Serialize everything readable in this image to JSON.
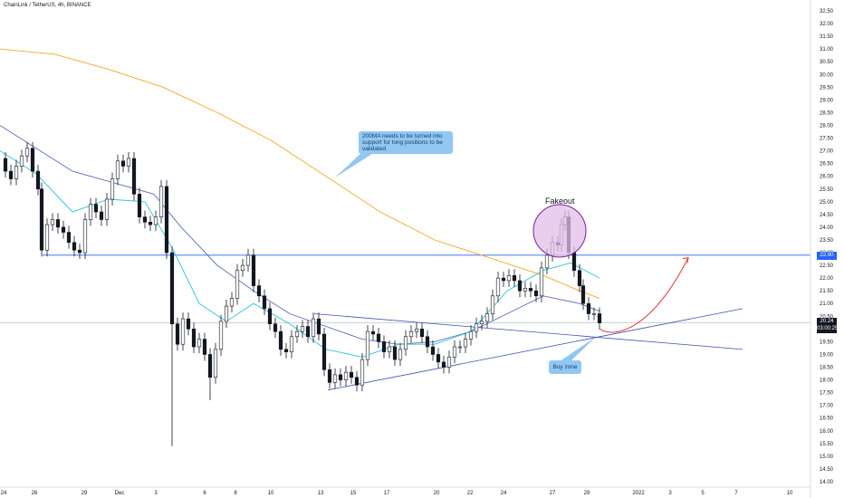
{
  "header": {
    "symbol_line": "ChainLink / TetherUS, 4h, BINANCE"
  },
  "annotations": {
    "callout_text": "200MA needs to be turned into support for long positions to be validated",
    "fakeout_label": "Fakeout",
    "buy_zone_label": "Buy zone"
  },
  "price_tags": {
    "level": "22.90",
    "last": "20.24",
    "countdown": "03:00:25"
  },
  "colors": {
    "candle": "#131722",
    "resistance_line": "#2962ff",
    "ma200": "#f5a623",
    "ma_fast": "#26c6da",
    "ma_mid": "#5c6bc0",
    "projection": "#e53935",
    "circle_fill": "#e1bee7",
    "circle_stroke": "#7b1fa2",
    "callout_bg": "#90c8f3"
  },
  "chart_data": {
    "type": "candlestick",
    "title": "ChainLink / TetherUS, 4h, BINANCE",
    "y_axis_ticks": [
      "32.50",
      "32.00",
      "31.50",
      "31.00",
      "30.50",
      "30.00",
      "29.50",
      "29.00",
      "28.50",
      "28.00",
      "27.50",
      "27.00",
      "26.50",
      "26.00",
      "25.50",
      "25.00",
      "24.50",
      "24.00",
      "23.50",
      "23.00",
      "22.50",
      "22.00",
      "21.50",
      "21.00",
      "20.50",
      "20.00",
      "19.50",
      "19.00",
      "18.50",
      "18.00",
      "17.50",
      "17.00",
      "16.50",
      "16.00",
      "15.50",
      "15.00",
      "14.50",
      "14.00"
    ],
    "ylim": [
      14.0,
      32.5
    ],
    "x_axis_ticks": [
      "24",
      "26",
      "29",
      "Dec",
      "3",
      "6",
      "8",
      "10",
      "13",
      "15",
      "17",
      "20",
      "22",
      "24",
      "27",
      "29",
      "2022",
      "3",
      "5",
      "7",
      "10"
    ],
    "horizontal_level": 22.9,
    "last_price": 20.24,
    "price_path": [
      [
        0,
        26.7
      ],
      [
        6,
        26.2
      ],
      [
        12,
        25.9
      ],
      [
        18,
        26.4
      ],
      [
        24,
        26.8
      ],
      [
        30,
        27.1
      ],
      [
        36,
        26.2
      ],
      [
        42,
        25.5
      ],
      [
        46,
        23.1
      ],
      [
        52,
        24.1
      ],
      [
        58,
        24.3
      ],
      [
        64,
        24.0
      ],
      [
        70,
        23.8
      ],
      [
        76,
        23.4
      ],
      [
        82,
        23.1
      ],
      [
        88,
        23.0
      ],
      [
        94,
        24.3
      ],
      [
        100,
        24.9
      ],
      [
        106,
        24.6
      ],
      [
        112,
        24.3
      ],
      [
        118,
        25.1
      ],
      [
        124,
        25.9
      ],
      [
        130,
        26.6
      ],
      [
        136,
        26.4
      ],
      [
        142,
        26.7
      ],
      [
        148,
        25.3
      ],
      [
        154,
        24.4
      ],
      [
        160,
        24.2
      ],
      [
        166,
        24.1
      ],
      [
        172,
        24.4
      ],
      [
        178,
        25.6
      ],
      [
        184,
        23.0
      ],
      [
        190,
        20.2
      ],
      [
        196,
        19.4
      ],
      [
        202,
        20.4
      ],
      [
        208,
        20.0
      ],
      [
        214,
        19.3
      ],
      [
        220,
        19.6
      ],
      [
        226,
        19.0
      ],
      [
        232,
        18.1
      ],
      [
        238,
        19.2
      ],
      [
        244,
        20.3
      ],
      [
        250,
        20.9
      ],
      [
        256,
        21.2
      ],
      [
        262,
        22.3
      ],
      [
        268,
        22.5
      ],
      [
        274,
        22.9
      ],
      [
        280,
        21.7
      ],
      [
        286,
        21.3
      ],
      [
        292,
        20.8
      ],
      [
        298,
        20.2
      ],
      [
        304,
        19.9
      ],
      [
        310,
        19.2
      ],
      [
        316,
        19.1
      ],
      [
        322,
        19.7
      ],
      [
        328,
        19.9
      ],
      [
        334,
        20.1
      ],
      [
        340,
        19.7
      ],
      [
        346,
        20.4
      ],
      [
        352,
        19.8
      ],
      [
        358,
        18.4
      ],
      [
        364,
        17.9
      ],
      [
        370,
        18.2
      ],
      [
        376,
        18.0
      ],
      [
        382,
        18.3
      ],
      [
        388,
        18.1
      ],
      [
        394,
        17.8
      ],
      [
        400,
        18.8
      ],
      [
        406,
        19.9
      ],
      [
        412,
        19.8
      ],
      [
        418,
        19.5
      ],
      [
        424,
        19.1
      ],
      [
        430,
        19.3
      ],
      [
        436,
        18.8
      ],
      [
        442,
        19.2
      ],
      [
        448,
        19.7
      ],
      [
        454,
        19.9
      ],
      [
        460,
        20.0
      ],
      [
        466,
        19.7
      ],
      [
        472,
        19.3
      ],
      [
        478,
        19.0
      ],
      [
        484,
        18.7
      ],
      [
        490,
        18.5
      ],
      [
        496,
        18.9
      ],
      [
        502,
        19.3
      ],
      [
        508,
        19.3
      ],
      [
        514,
        19.6
      ],
      [
        520,
        19.9
      ],
      [
        526,
        20.2
      ],
      [
        532,
        20.3
      ],
      [
        538,
        20.6
      ],
      [
        544,
        21.3
      ],
      [
        550,
        22.0
      ],
      [
        556,
        21.9
      ],
      [
        562,
        22.1
      ],
      [
        568,
        21.9
      ],
      [
        574,
        21.5
      ],
      [
        580,
        21.6
      ],
      [
        586,
        21.5
      ],
      [
        592,
        21.3
      ],
      [
        598,
        22.4
      ],
      [
        604,
        22.9
      ],
      [
        610,
        23.4
      ],
      [
        616,
        23.3
      ],
      [
        620,
        24.1
      ],
      [
        624,
        24.4
      ],
      [
        628,
        23.0
      ],
      [
        634,
        22.3
      ],
      [
        640,
        21.7
      ],
      [
        644,
        21.0
      ],
      [
        650,
        20.6
      ],
      [
        656,
        20.6
      ],
      [
        662,
        20.24
      ]
    ],
    "moving_averages": [
      {
        "name": "MA200",
        "color": "#f5a623",
        "points": [
          [
            0,
            31.0
          ],
          [
            60,
            30.8
          ],
          [
            120,
            30.2
          ],
          [
            180,
            29.5
          ],
          [
            240,
            28.5
          ],
          [
            300,
            27.4
          ],
          [
            360,
            26.0
          ],
          [
            420,
            24.6
          ],
          [
            480,
            23.5
          ],
          [
            540,
            22.8
          ],
          [
            600,
            22.1
          ],
          [
            640,
            21.5
          ],
          [
            662,
            21.2
          ]
        ]
      },
      {
        "name": "MA50",
        "color": "#5c6bc0",
        "points": [
          [
            0,
            28.0
          ],
          [
            40,
            27.1
          ],
          [
            80,
            26.2
          ],
          [
            130,
            25.7
          ],
          [
            170,
            25.3
          ],
          [
            200,
            24.0
          ],
          [
            240,
            22.5
          ],
          [
            280,
            21.5
          ],
          [
            320,
            20.6
          ],
          [
            360,
            20.1
          ],
          [
            400,
            19.6
          ],
          [
            440,
            19.4
          ],
          [
            480,
            19.5
          ],
          [
            520,
            19.9
          ],
          [
            560,
            20.6
          ],
          [
            600,
            21.3
          ],
          [
            640,
            21.0
          ],
          [
            662,
            20.7
          ]
        ]
      },
      {
        "name": "MA20",
        "color": "#26c6da",
        "points": [
          [
            0,
            27.0
          ],
          [
            40,
            26.1
          ],
          [
            80,
            24.6
          ],
          [
            120,
            25.1
          ],
          [
            160,
            25.0
          ],
          [
            190,
            23.2
          ],
          [
            220,
            21.0
          ],
          [
            250,
            20.3
          ],
          [
            280,
            21.0
          ],
          [
            320,
            20.2
          ],
          [
            360,
            19.2
          ],
          [
            400,
            18.9
          ],
          [
            440,
            19.4
          ],
          [
            480,
            19.4
          ],
          [
            520,
            19.9
          ],
          [
            560,
            21.5
          ],
          [
            600,
            22.3
          ],
          [
            630,
            22.6
          ],
          [
            662,
            22.0
          ]
        ]
      }
    ],
    "trendlines": [
      {
        "name": "upper-trendline",
        "from": [
          347,
          20.6
        ],
        "to": [
          820,
          19.2
        ]
      },
      {
        "name": "lower-trendline",
        "from": [
          362,
          17.6
        ],
        "to": [
          820,
          20.8
        ]
      }
    ],
    "projection_path": [
      [
        662,
        20.0
      ],
      [
        680,
        19.8
      ],
      [
        700,
        19.9
      ],
      [
        720,
        20.3
      ],
      [
        740,
        21.3
      ],
      [
        760,
        22.8
      ]
    ]
  }
}
